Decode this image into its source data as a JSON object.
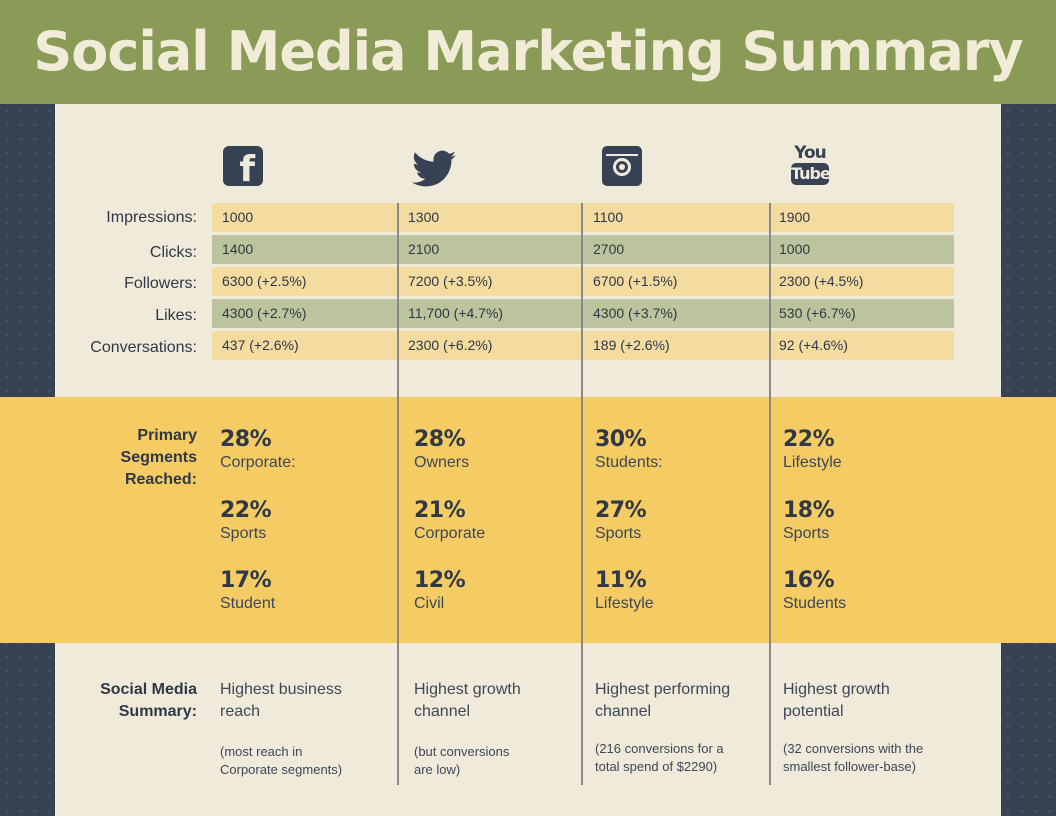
{
  "title": "Social Media Marketing Summary",
  "colors": {
    "header": "#8a9b58",
    "background": "#f0eadb",
    "sidebar": "#374355",
    "band": "#f5cc63",
    "row_yellow": "#f4dca0",
    "row_green": "#bcc49d"
  },
  "platforms": [
    "facebook-icon",
    "twitter-icon",
    "instagram-icon",
    "youtube-icon"
  ],
  "youtube_logo": {
    "top": "You",
    "bottom": "Tube"
  },
  "facebook_logo": "f",
  "metrics": [
    {
      "label": "Impressions:",
      "values": [
        "1000",
        "1300",
        "1100",
        "1900"
      ]
    },
    {
      "label": "Clicks:",
      "values": [
        "1400",
        "2100",
        "2700",
        "1000"
      ]
    },
    {
      "label": "Followers:",
      "values": [
        "6300 (+2.5%)",
        "7200 (+3.5%)",
        "6700 (+1.5%)",
        "2300 (+4.5%)"
      ]
    },
    {
      "label": "Likes:",
      "values": [
        "4300 (+2.7%)",
        "11,700 (+4.7%)",
        "4300 (+3.7%)",
        "530 (+6.7%)"
      ]
    },
    {
      "label": "Conversations:",
      "values": [
        "437 (+2.6%)",
        "2300 (+6.2%)",
        "189 (+2.6%)",
        "92 (+4.6%)"
      ]
    }
  ],
  "segments": {
    "label_lines": [
      "Primary",
      "Segments",
      "Reached:"
    ],
    "columns": [
      [
        {
          "pct": "28%",
          "name": "Corporate:"
        },
        {
          "pct": "22%",
          "name": "Sports"
        },
        {
          "pct": "17%",
          "name": "Student"
        }
      ],
      [
        {
          "pct": "28%",
          "name": "Owners"
        },
        {
          "pct": "21%",
          "name": "Corporate"
        },
        {
          "pct": "12%",
          "name": "Civil"
        }
      ],
      [
        {
          "pct": "30%",
          "name": "Students:"
        },
        {
          "pct": "27%",
          "name": "Sports"
        },
        {
          "pct": "11%",
          "name": "Lifestyle"
        }
      ],
      [
        {
          "pct": "22%",
          "name": "Lifestyle"
        },
        {
          "pct": "18%",
          "name": "Sports"
        },
        {
          "pct": "16%",
          "name": "Students"
        }
      ]
    ]
  },
  "summary": {
    "label_lines": [
      "Social Media",
      "Summary:"
    ],
    "columns": [
      {
        "main": [
          "Highest business",
          "reach"
        ],
        "note": [
          "(most reach in",
          "Corporate segments)"
        ]
      },
      {
        "main": [
          "Highest growth",
          "channel"
        ],
        "note": [
          "(but conversions",
          "are low)"
        ]
      },
      {
        "main": [
          "Highest performing",
          "channel"
        ],
        "note": [
          "(216 conversions for a",
          "total spend of $2290)"
        ]
      },
      {
        "main": [
          "Highest growth",
          "potential"
        ],
        "note": [
          "(32 conversions with the",
          "smallest follower-base)"
        ]
      }
    ]
  }
}
